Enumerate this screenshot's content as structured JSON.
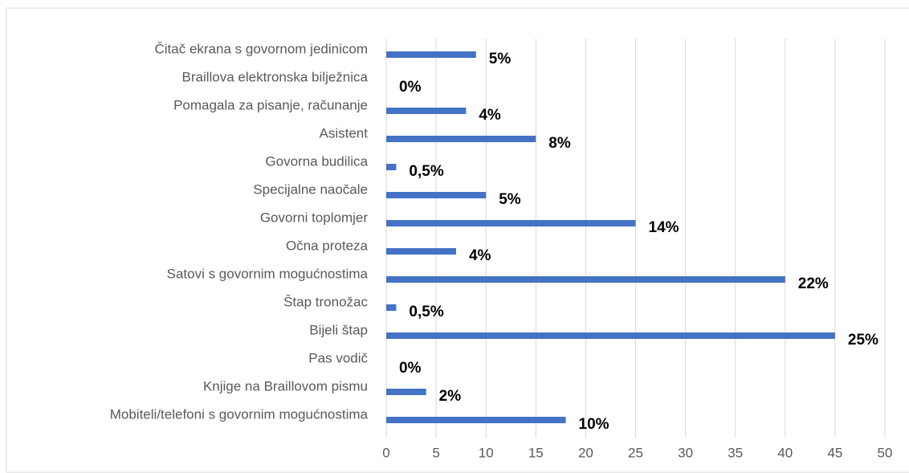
{
  "chart_data": {
    "type": "bar",
    "orientation": "horizontal",
    "categories": [
      "Čitač ekrana s govornom jedinicom",
      "Braillova elektronska bilježnica",
      "Pomagala za pisanje, računanje",
      "Asistent",
      "Govorna budilica",
      "Specijalne naočale",
      "Govorni toplomjer",
      "Očna proteza",
      "Satovi s govornim mogućnostima",
      "Štap tronožac",
      "Bijeli štap",
      "Pas vodič",
      "Knjige na Braillovom pismu",
      "Mobiteli/telefoni s govornim mogućnostima"
    ],
    "values": [
      9,
      0,
      8,
      15,
      1,
      10,
      25,
      7,
      40,
      1,
      45,
      0,
      4,
      18
    ],
    "value_labels": [
      "5%",
      "0%",
      "4%",
      "8%",
      "0,5%",
      "5%",
      "14%",
      "4%",
      "22%",
      "0,5%",
      "25%",
      "0%",
      "2%",
      "10%"
    ],
    "color": "#4472c4",
    "xlim": [
      0,
      50
    ],
    "xticks": [
      0,
      5,
      10,
      15,
      20,
      25,
      30,
      35,
      40,
      45,
      50
    ],
    "grid": true
  }
}
